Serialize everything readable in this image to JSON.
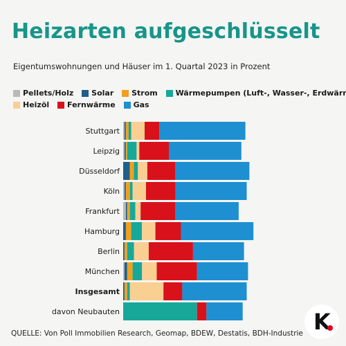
{
  "title": "Heizarten aufgeschlüsselt",
  "subtitle": "Eigentumswohnungen und Häuser im 1. Quartal 2023 in Prozent",
  "source": "QUELLE: Von Poll Immobilien Research, Geomap, BDEW, Destatis, BDH-Industrie",
  "logo": {
    "text": "K"
  },
  "colors": {
    "Pellets/Holz": "#b9b9b9",
    "Solar": "#1f5f8b",
    "Strom": "#f0a01e",
    "Wärmepumpen (Luft-, Wasser-, Erdwärme)": "#17a89a",
    "Heizöl": "#f9cf92",
    "Fernwärme": "#d8111b",
    "Gas": "#1e8fd0"
  },
  "legend": {
    "row1": [
      "Pellets/Holz",
      "Solar",
      "Strom",
      "Wärmepumpen (Luft-, Wasser-, Erdwärme)"
    ],
    "row2": [
      "Heizöl",
      "Fernwärme",
      "Gas"
    ]
  },
  "chart_data": {
    "type": "bar",
    "orientation": "horizontal",
    "stacked": true,
    "title": "Heizarten aufgeschlüsselt",
    "subtitle": "Eigentumswohnungen und Häuser im 1. Quartal 2023 in Prozent",
    "xlabel": "",
    "ylabel": "",
    "grid": false,
    "legend_position": "top",
    "categories": [
      "Stuttgart",
      "Leipzig",
      "Düsseldorf",
      "Köln",
      "Frankfurt",
      "Hamburg",
      "Berlin",
      "München",
      "Insgesamt",
      "davon Neubauten"
    ],
    "bold_categories": [
      "Insgesamt"
    ],
    "series": [
      {
        "name": "Pellets/Holz",
        "values": [
          1,
          1,
          0,
          1,
          2,
          0,
          0,
          1,
          0,
          0
        ]
      },
      {
        "name": "Solar",
        "values": [
          1,
          1,
          5,
          1,
          1,
          2,
          1,
          2,
          1,
          0
        ]
      },
      {
        "name": "Strom",
        "values": [
          2,
          1,
          3,
          3,
          2,
          4,
          2,
          4,
          2,
          0
        ]
      },
      {
        "name": "Wärmepumpen (Luft-, Wasser-, Erdwärme)",
        "values": [
          2,
          7,
          3,
          2,
          4,
          8,
          5,
          7,
          2,
          55
        ]
      },
      {
        "name": "Heizöl",
        "values": [
          10,
          2,
          7,
          10,
          4,
          10,
          11,
          11,
          25,
          0
        ]
      },
      {
        "name": "Fernwärme",
        "values": [
          11,
          22,
          21,
          22,
          26,
          19,
          33,
          30,
          14,
          7
        ]
      },
      {
        "name": "Gas",
        "values": [
          64,
          54,
          55,
          53,
          47,
          54,
          38,
          38,
          48,
          27
        ]
      }
    ]
  }
}
